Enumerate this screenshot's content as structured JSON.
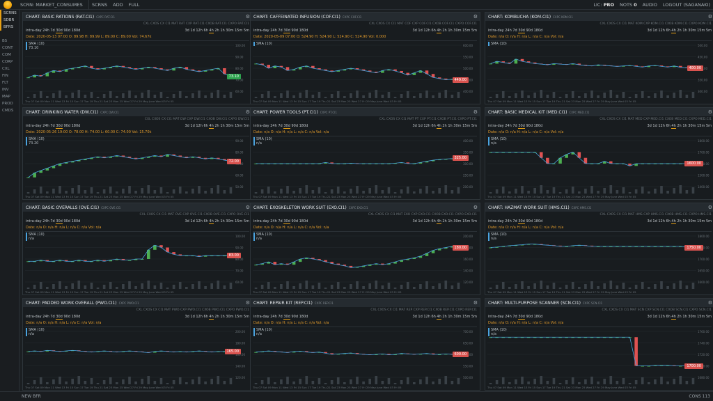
{
  "topbar": {
    "scrn": "SCRN: MARKET_CONSUMES",
    "items": [
      "SCRNS",
      "ADD",
      "FULL"
    ],
    "lic": "LIC: ",
    "lic_val": "PRO",
    "nots": "NOTS ",
    "nots_val": "0",
    "audio": "AUDIO",
    "logout": "LOGOUT (SAGANAKI)"
  },
  "sidebar": {
    "top": [
      "SCRNS",
      "SDBR",
      "BFRS"
    ],
    "items": [
      "BS",
      "CONT",
      "COM",
      "CORP",
      "CXL",
      "FIN",
      "FLT",
      "INV",
      "MAP",
      "PROD",
      "CMDS"
    ]
  },
  "bottom": {
    "newbfr": "NEW BFR",
    "cons": "CONS 113"
  },
  "panels": [
    {
      "title": "CHART: BASIC RATIONS (RAT.CI1)",
      "sub": "CXPC RAT.CI1",
      "bar": "CXL  CXOS  CX CI1  MAT RAT  CXP RAT.CI1  CXOB RAT.CI1  CXPO RAT.CI1",
      "quote": "Date: 2020-05-13 07:00  O: 89.98 H: 89.99 L: 89.00 C: 89.00 Vol: 74.67k",
      "sma": "SMA (10)",
      "smaval": "73.10",
      "price": "73.10",
      "pricecolor": "#2ea44f",
      "dates": "Thu 07  Sat 09  Mon 11  Wed 13  Fri 15  Sun 17  Tue 19  Thu 21  Sat 23  Mon 25  Wed 27  Fri 29  May  June  Wed 03  Fri 05",
      "yt": [
        "100.00",
        "90.00",
        "80.00",
        "70.00",
        "60.00"
      ]
    },
    {
      "title": "CHART: CAFFEINATED INFUSION (COF.CI1)",
      "sub": "CXPC COF.CI1",
      "bar": "CXL  CXOS  CX CI1  MAT COF  CXP COF.CI1  CXOB COF.CI1  CXPO COF.CI1",
      "quote": "Date: 2020-05-09 07:00  O: 524.90 H: 524.90 L: 524.90 C: 524.90 Vol: 0.000",
      "sma": "SMA (10)",
      "smaval": "",
      "price": "449.00",
      "pricecolor": "#d9534f",
      "dates": "Thu 07  Sat 09  Mon 11  Wed 13  Fri 15  Sun 17  Tue 19  Thu 21  Sat 23  Mon 25  Wed 27  Fri 29  May  June  Wed 03  Fri 05",
      "yt": [
        "600.00",
        "550.00",
        "500.00",
        "450.00",
        "400.00"
      ]
    },
    {
      "title": "CHART: KOMBUCHA (KOM.CI1)",
      "sub": "CXPC KOM.CI1",
      "bar": "CXL  CXOS  CX CI1  MAT KOM  CXP KOM.CI1  CXOB KOM.CI1  CXPO KOM.CI1",
      "quote": "Date: n/a O: n/a H: n/a L: n/a C: n/a Vol: n/a",
      "sma": "SMA (10)",
      "smaval": "",
      "price": "400.00",
      "pricecolor": "#d9534f",
      "dates": "Thu 07  Sat 09  Mon 11  Wed 13  Fri 15  Sun 17  Tue 19  Thu 21  Sat 23  Mon 25  Wed 27  Fri 29  May  June  Wed 03  Fri 05",
      "yt": [
        "500.00",
        "450.00",
        "400.00",
        "350.00",
        "300.00"
      ]
    },
    {
      "title": "CHART: DRINKING WATER (DW.CI1)",
      "sub": "CXPC DW.CI1",
      "bar": "CXL  CXOS  CX CI1  MAT DW  CXP DW.CI1  CXOB DW.CI1  CXPO DW.CI1",
      "quote": "Date: 2020-05-26 19:00  O: 78.00 H: 74.00 L: 60.00 C: 74.00 Vol: 15.70k",
      "sma": "SMA (10)",
      "smaval": "73.20",
      "price": "72.00",
      "pricecolor": "#d9534f",
      "dates": "Thu 07  Sat 09  Mon 11  Wed 13  Fri 15  Sun 17  Tue 19  Thu 21  Sat 23  Mon 25  Wed 27  Fri 29  May  June  Wed 03  Fri 05",
      "yt": [
        "90.00",
        "80.00",
        "70.00",
        "60.00",
        "50.00"
      ]
    },
    {
      "title": "CHART: POWER TOOLS (PT.CI1)",
      "sub": "CXPC PT.CI1",
      "bar": "CXL  CXOS  CX CI1  MAT PT  CXP PT.CI1  CXOB PT.CI1  CXPO PT.CI1",
      "quote": "Date: n/a O: n/a H: n/a L: n/a C: n/a Vol: n/a",
      "sma": "SMA (10)",
      "smaval": "n/a",
      "price": "325.00",
      "pricecolor": "#d9534f",
      "dates": "Thu 07  Sat 09  Mon 11  Wed 13  Fri 15  Sun 17  Tue 19  Thu 21  Sat 23  Mon 25  Wed 27  Fri 29  May  June  Wed 03  Fri 05",
      "yt": [
        "400.00",
        "350.00",
        "300.00",
        "250.00",
        "200.00"
      ]
    },
    {
      "title": "CHART: BASIC MEDICAL KIT (MED.CI1)",
      "sub": "CXPC MED.CI1",
      "bar": "CXL  CXOS  CX CI1  MAT MED  CXP MED.CI1  CXOB MED.CI1  CXPO MED.CI1",
      "quote": "Date: n/a O: n/a H: n/a L: n/a C: n/a Vol: n/a",
      "sma": "SMA (10)",
      "smaval": "n/a",
      "price": "1600.00",
      "pricecolor": "#d9534f",
      "dates": "Thu 07  Sat 09  Mon 11  Wed 13  Fri 15  Sun 17  Tue 19  Thu 21  Sat 23  Mon 25  Wed 27  Fri 29  May  June  Wed 03  Fri 05",
      "yt": [
        "1800.00",
        "1700.00",
        "1600.00",
        "1500.00",
        "1400.00"
      ]
    },
    {
      "title": "CHART: BASIC OVERALLS (OVE.CI1)",
      "sub": "CXPC OVE.CI1",
      "bar": "CXL  CXOS  CX CI1  MAT OVE  CXP OVE.CI1  CXOB OVE.CI1  CXPO OVE.CI1",
      "quote": "Date: n/a O: n/a H: n/a L: n/a C: n/a Vol: n/a",
      "sma": "SMA (10)",
      "smaval": "n/a",
      "price": "83.00",
      "pricecolor": "#d9534f",
      "dates": "Thu 07  Sat 09  Mon 11  Wed 13  Fri 15  Sun 17  Tue 19  Thu 21  Sat 23  Mon 25  Wed 27  Fri 29  May  June  Wed 03  Fri 05",
      "yt": [
        "100.00",
        "90.00",
        "80.00",
        "70.00",
        "60.00"
      ]
    },
    {
      "title": "CHART: EXOSKELETON WORK SUIT (EXO.CI1)",
      "sub": "CXPC EXO.CI1",
      "bar": "CXL  CXOS  CX CI1  MAT EXO  CXP EXO.CI1  CXOB EXO.CI1  CXPO EXO.CI1",
      "quote": "Date: n/a O: n/a H: n/a L: n/a C: n/a Vol: n/a",
      "sma": "SMA (10)",
      "smaval": "n/a",
      "price": "180.00",
      "pricecolor": "#d9534f",
      "dates": "Thu 07  Sat 09  Mon 11  Wed 13  Fri 15  Sun 17  Tue 19  Thu 21  Sat 23  Mon 25  Wed 27  Fri 29  May  June  Wed 03  Fri 05",
      "yt": [
        "200.00",
        "180.00",
        "160.00",
        "140.00",
        "120.00"
      ]
    },
    {
      "title": "CHART: HAZMAT WORK SUIT (HMS.CI1)",
      "sub": "CXPC HMS.CI1",
      "bar": "CXL  CXOS  CX CI1  MAT HMS  CXP HMS.CI1  CXOB HMS.CI1  CXPO HMS.CI1",
      "quote": "Date: n/a O: n/a H: n/a L: n/a C: n/a Vol: n/a",
      "sma": "SMA (10)",
      "smaval": "n/a",
      "price": "1750.00",
      "pricecolor": "#d9534f",
      "dates": "Thu 07  Sat 09  Mon 11  Wed 13  Fri 15  Sun 17  Tue 19  Thu 21  Sat 23  Mon 25  Wed 27  Fri 29  May  June  Wed 03  Fri 05",
      "yt": [
        "1800.00",
        "1750.00",
        "1700.00",
        "1650.00",
        "1600.00"
      ]
    },
    {
      "title": "CHART: PADDED WORK OVERALL (PWO.CI1)",
      "sub": "CXPC PWO.CI1",
      "bar": "CXL  CXOS  CX CI1  MAT PWO  CXP PWO.CI1  CXOB PWO.CI1  CXPO PWO.CI1",
      "quote": "Date: n/a O: n/a H: n/a L: n/a C: n/a Vol: n/a",
      "sma": "SMA (10)",
      "smaval": "n/a",
      "price": "165.00",
      "pricecolor": "#d9534f",
      "dates": "Thu 07  Sat 09  Mon 11  Wed 13  Fri 15  Sun 17  Tue 19  Thu 21  Sat 23  Mon 25  Wed 27  Fri 29  May  June  Wed 03  Fri 05",
      "yt": [
        "200.00",
        "180.00",
        "160.00",
        "140.00",
        "120.00"
      ]
    },
    {
      "title": "CHART: REPAIR KIT (REP.CI1)",
      "sub": "CXPC REP.CI1",
      "bar": "CXL  CXOS  CX CI1  MAT REP  CXP REP.CI1  CXOB REP.CI1  CXPO REP.CI1",
      "quote": "Date: n/a O: n/a H: n/a L: n/a C: n/a Vol: n/a",
      "sma": "SMA (10)",
      "smaval": "n/a",
      "price": "600.00",
      "pricecolor": "#d9534f",
      "dates": "Thu 07  Sat 09  Mon 11  Wed 13  Fri 15  Sun 17  Tue 19  Thu 21  Sat 23  Mon 25  Wed 27  Fri 29  May  June  Wed 03  Fri 05",
      "yt": [
        "700.00",
        "650.00",
        "600.00",
        "550.00",
        "500.00"
      ]
    },
    {
      "title": "CHART: MULTI-PURPOSE SCANNER (SCN.CI1)",
      "sub": "CXPC SCN.CI1",
      "bar": "CXL  CXOS  CX CI1  MAT SCN  CXP SCN.CI1  CXOB SCN.CI1  CXPO SCN.CI1",
      "quote": "Date: n/a O: n/a H: n/a L: n/a C: n/a Vol: n/a",
      "sma": "SMA (10)",
      "smaval": "n/a",
      "price": "1700.00",
      "pricecolor": "#d9534f",
      "dates": "Thu 07  Sat 09  Mon 11  Wed 13  Fri 15  Sun 17  Tue 19  Thu 21  Sat 23  Mon 25  Wed 27  Fri 29  May  June  Wed 03  Fri 05",
      "yt": [
        "1760.00",
        "1740.00",
        "1720.00",
        "1700.00",
        "1680.00"
      ]
    }
  ],
  "ranges_left": [
    "intra-day",
    "24h",
    "7d",
    "30d",
    "90d",
    "180d"
  ],
  "ranges_right": [
    "3d",
    "1d",
    "12h",
    "6h",
    "4h",
    "2h",
    "1h",
    "30m",
    "15m",
    "5m"
  ],
  "chart_data": [
    {
      "type": "line",
      "title": "CHART: BASIC RATIONS (RAT.CI1)",
      "series": [
        {
          "values": [
            72,
            74,
            73,
            76,
            78,
            77,
            79,
            80,
            81,
            82,
            80,
            79,
            80,
            81,
            82,
            81,
            80,
            79,
            80,
            81,
            80,
            79,
            78,
            80,
            81,
            79,
            78,
            77,
            78,
            79,
            80,
            75,
            73
          ]
        }
      ],
      "ylim": [
        60,
        100
      ]
    },
    {
      "type": "line",
      "title": "CHART: CAFFEINATED INFUSION (COF.CI1)",
      "series": [
        {
          "values": [
            520,
            515,
            500,
            510,
            505,
            490,
            495,
            505,
            510,
            500,
            495,
            490,
            485,
            490,
            495,
            500,
            495,
            490,
            485,
            480,
            490,
            495,
            488,
            480,
            470,
            480,
            490,
            475,
            460,
            455,
            450,
            452,
            449
          ]
        }
      ],
      "ylim": [
        400,
        600
      ]
    },
    {
      "type": "line",
      "title": "CHART: KOMBUCHA (KOM.CI1)",
      "series": [
        {
          "values": [
            420,
            430,
            425,
            420,
            440,
            430,
            425,
            420,
            418,
            415,
            420,
            418,
            416,
            420,
            415,
            412,
            410,
            415,
            412,
            410,
            408,
            410,
            412,
            408,
            405,
            410,
            412,
            408,
            405,
            410,
            404,
            402,
            400
          ]
        }
      ],
      "ylim": [
        300,
        500
      ]
    },
    {
      "type": "line",
      "title": "CHART: DRINKING WATER (DW.CI1)",
      "series": [
        {
          "values": [
            58,
            62,
            64,
            66,
            68,
            70,
            71,
            72,
            73,
            74,
            75,
            76,
            75,
            76,
            77,
            76,
            75,
            74,
            75,
            76,
            77,
            76,
            78,
            77,
            76,
            75,
            76,
            75,
            74,
            75,
            74,
            73,
            72
          ]
        }
      ],
      "ylim": [
        50,
        90
      ]
    },
    {
      "type": "line",
      "title": "CHART: POWER TOOLS (PT.CI1)",
      "series": [
        {
          "values": [
            300,
            300,
            300,
            300,
            300,
            300,
            300,
            300,
            300,
            300,
            300,
            305,
            300,
            300,
            300,
            302,
            300,
            300,
            300,
            300,
            300,
            300,
            302,
            305,
            300,
            300,
            305,
            310,
            315,
            318,
            320,
            322,
            325
          ]
        }
      ],
      "ylim": [
        200,
        400
      ]
    },
    {
      "type": "line",
      "title": "CHART: BASIC MEDICAL KIT (MED.CI1)",
      "series": [
        {
          "values": [
            1700,
            1700,
            1700,
            1700,
            1700,
            1700,
            1700,
            1700,
            1650,
            1600,
            1600,
            1650,
            1680,
            1700,
            1650,
            1600,
            1600,
            1600,
            1620,
            1600,
            1600,
            1600,
            1580,
            1600,
            1600,
            1600,
            1600,
            1600,
            1600,
            1600,
            1600,
            1600,
            1600
          ]
        }
      ],
      "ylim": [
        1400,
        1800
      ]
    },
    {
      "type": "line",
      "title": "CHART: BASIC OVERALLS (OVE.CI1)",
      "series": [
        {
          "values": [
            78,
            78,
            79,
            78,
            78,
            79,
            78,
            78,
            79,
            78,
            78,
            79,
            78,
            79,
            80,
            79,
            79,
            80,
            80,
            88,
            92,
            90,
            86,
            84,
            83,
            83,
            83,
            82,
            83,
            83,
            83,
            83,
            83
          ]
        }
      ],
      "ylim": [
        60,
        100
      ]
    },
    {
      "type": "line",
      "title": "CHART: EXOSKELETON WORK SUIT (EXO.CI1)",
      "series": [
        {
          "values": [
            150,
            152,
            155,
            150,
            152,
            150,
            155,
            160,
            162,
            160,
            158,
            155,
            152,
            150,
            148,
            145,
            146,
            148,
            150,
            152,
            150,
            152,
            155,
            158,
            160,
            162,
            165,
            170,
            175,
            178,
            180,
            182,
            180
          ]
        }
      ],
      "ylim": [
        120,
        200
      ]
    },
    {
      "type": "line",
      "title": "CHART: HAZMAT WORK SUIT (HMS.CI1)",
      "series": [
        {
          "values": [
            1750,
            1752,
            1755,
            1758,
            1760,
            1762,
            1765,
            1765,
            1762,
            1760,
            1758,
            1755,
            1755,
            1758,
            1760,
            1758,
            1755,
            1755,
            1755,
            1755,
            1755,
            1755,
            1755,
            1755,
            1755,
            1755,
            1755,
            1755,
            1755,
            1755,
            1755,
            1752,
            1750
          ]
        }
      ],
      "ylim": [
        1600,
        1800
      ]
    },
    {
      "type": "line",
      "title": "CHART: PADDED WORK OVERALL (PWO.CI1)",
      "series": [
        {
          "values": [
            165,
            166,
            165,
            167,
            166,
            165,
            166,
            167,
            166,
            165,
            164,
            165,
            166,
            165,
            164,
            165,
            166,
            165,
            164,
            163,
            165,
            166,
            165,
            164,
            165,
            164,
            165,
            166,
            165,
            164,
            165,
            165,
            165
          ]
        }
      ],
      "ylim": [
        120,
        200
      ]
    },
    {
      "type": "line",
      "title": "CHART: REPAIR KIT (REP.CI1)",
      "series": [
        {
          "values": [
            610,
            612,
            615,
            612,
            610,
            608,
            612,
            614,
            610,
            608,
            610,
            605,
            600,
            602,
            604,
            606,
            602,
            600,
            598,
            600,
            602,
            598,
            600,
            604,
            602,
            600,
            602,
            604,
            600,
            600,
            602,
            600,
            600
          ]
        }
      ],
      "ylim": [
        500,
        700
      ]
    },
    {
      "type": "line",
      "title": "CHART: MULTI-PURPOSE SCANNER (SCN.CI1)",
      "series": [
        {
          "values": [
            1750,
            1750,
            1750,
            1750,
            1750,
            1750,
            1750,
            1750,
            1750,
            1750,
            1750,
            1750,
            1750,
            1750,
            1750,
            1750,
            1750,
            1750,
            1750,
            1750,
            1750,
            1750,
            1750,
            1700,
            1700,
            1700,
            1701,
            1701,
            1701,
            1700,
            1700,
            1700,
            1700
          ]
        }
      ],
      "ylim": [
        1680,
        1760
      ]
    }
  ]
}
